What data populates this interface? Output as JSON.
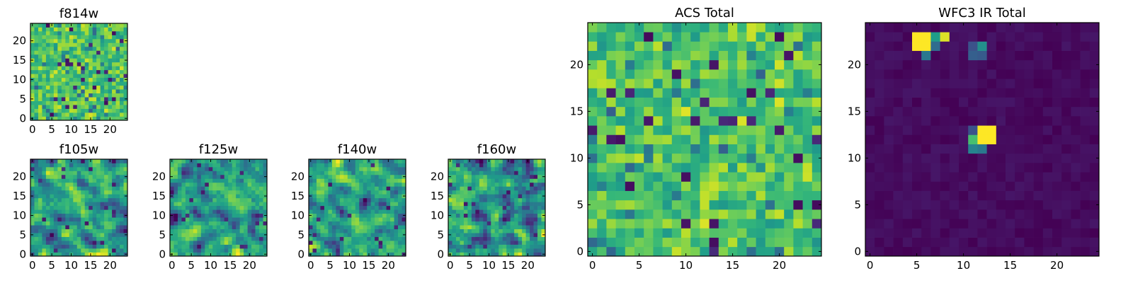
{
  "chart_data": [
    {
      "type": "heatmap",
      "id": "f814w",
      "title": "f814w",
      "style": "noise",
      "grid": [
        25,
        25
      ],
      "seed": 814,
      "xlim": [
        0,
        24
      ],
      "ylim": [
        0,
        24
      ],
      "xticks": [
        0,
        5,
        10,
        15,
        20
      ],
      "yticks": [
        0,
        5,
        10,
        15,
        20
      ],
      "xtick_labels": [
        "0",
        "5",
        "10",
        "15",
        "20"
      ],
      "ytick_labels": [
        "0",
        "5",
        "10",
        "15",
        "20"
      ]
    },
    {
      "type": "heatmap",
      "id": "f105w",
      "title": "f105w",
      "style": "smooth",
      "grid": [
        25,
        25
      ],
      "seed": 105,
      "xlim": [
        0,
        24
      ],
      "ylim": [
        0,
        24
      ],
      "xticks": [
        0,
        5,
        10,
        15,
        20
      ],
      "yticks": [
        0,
        5,
        10,
        15,
        20
      ],
      "xtick_labels": [
        "0",
        "5",
        "10",
        "15",
        "20"
      ],
      "ytick_labels": [
        "0",
        "5",
        "10",
        "15",
        "20"
      ]
    },
    {
      "type": "heatmap",
      "id": "f125w",
      "title": "f125w",
      "style": "smooth",
      "grid": [
        25,
        25
      ],
      "seed": 125,
      "xlim": [
        0,
        24
      ],
      "ylim": [
        0,
        24
      ],
      "xticks": [
        0,
        5,
        10,
        15,
        20
      ],
      "yticks": [
        0,
        5,
        10,
        15,
        20
      ],
      "xtick_labels": [
        "0",
        "5",
        "10",
        "15",
        "20"
      ],
      "ytick_labels": [
        "0",
        "5",
        "10",
        "15",
        "20"
      ]
    },
    {
      "type": "heatmap",
      "id": "f140w",
      "title": "f140w",
      "style": "smooth",
      "grid": [
        25,
        25
      ],
      "seed": 140,
      "xlim": [
        0,
        24
      ],
      "ylim": [
        0,
        24
      ],
      "xticks": [
        0,
        5,
        10,
        15,
        20
      ],
      "yticks": [
        0,
        5,
        10,
        15,
        20
      ],
      "xtick_labels": [
        "0",
        "5",
        "10",
        "15",
        "20"
      ],
      "ytick_labels": [
        "0",
        "5",
        "10",
        "15",
        "20"
      ]
    },
    {
      "type": "heatmap",
      "id": "f160w",
      "title": "f160w",
      "style": "smooth",
      "grid": [
        25,
        25
      ],
      "seed": 160,
      "xlim": [
        0,
        24
      ],
      "ylim": [
        0,
        24
      ],
      "xticks": [
        0,
        5,
        10,
        15,
        20
      ],
      "yticks": [
        0,
        5,
        10,
        15,
        20
      ],
      "xtick_labels": [
        "0",
        "5",
        "10",
        "15",
        "20"
      ],
      "ytick_labels": [
        "0",
        "5",
        "10",
        "15",
        "20"
      ]
    },
    {
      "type": "heatmap",
      "id": "acs-total",
      "title": "ACS Total",
      "style": "noise",
      "grid": [
        25,
        25
      ],
      "seed": 2001,
      "xlim": [
        0,
        24
      ],
      "ylim": [
        0,
        24
      ],
      "xticks": [
        0,
        5,
        10,
        15,
        20
      ],
      "yticks": [
        0,
        5,
        10,
        15,
        20
      ],
      "xtick_labels": [
        "0",
        "5",
        "10",
        "15",
        "20"
      ],
      "ytick_labels": [
        "0",
        "5",
        "10",
        "15",
        "20"
      ]
    },
    {
      "type": "heatmap",
      "id": "wfc3-ir-total",
      "title": "WFC3 IR Total",
      "style": "sparse",
      "grid": [
        25,
        25
      ],
      "seed": 3001,
      "xlim": [
        0,
        24
      ],
      "ylim": [
        0,
        24
      ],
      "xticks": [
        0,
        5,
        10,
        15,
        20
      ],
      "yticks": [
        0,
        5,
        10,
        15,
        20
      ],
      "xtick_labels": [
        "0",
        "5",
        "10",
        "15",
        "20"
      ],
      "ytick_labels": [
        "0",
        "5",
        "10",
        "15",
        "20"
      ],
      "bright_pixels": [
        {
          "x": 5,
          "y": 23,
          "v": 1.0
        },
        {
          "x": 6,
          "y": 23,
          "v": 1.0
        },
        {
          "x": 7,
          "y": 23,
          "v": 0.55
        },
        {
          "x": 8,
          "y": 23,
          "v": 0.95
        },
        {
          "x": 5,
          "y": 22,
          "v": 1.0
        },
        {
          "x": 6,
          "y": 22,
          "v": 1.0
        },
        {
          "x": 7,
          "y": 22,
          "v": 0.35
        },
        {
          "x": 6,
          "y": 21,
          "v": 0.4
        },
        {
          "x": 12,
          "y": 22,
          "v": 0.5
        },
        {
          "x": 11,
          "y": 22,
          "v": 0.25
        },
        {
          "x": 11,
          "y": 21,
          "v": 0.3
        },
        {
          "x": 12,
          "y": 21,
          "v": 0.28
        },
        {
          "x": 12,
          "y": 13,
          "v": 1.0
        },
        {
          "x": 13,
          "y": 13,
          "v": 1.0
        },
        {
          "x": 12,
          "y": 12,
          "v": 1.0
        },
        {
          "x": 13,
          "y": 12,
          "v": 1.0
        },
        {
          "x": 11,
          "y": 12,
          "v": 0.7
        },
        {
          "x": 11,
          "y": 11,
          "v": 0.45
        },
        {
          "x": 12,
          "y": 11,
          "v": 0.4
        },
        {
          "x": 11,
          "y": 13,
          "v": 0.25
        }
      ]
    }
  ]
}
